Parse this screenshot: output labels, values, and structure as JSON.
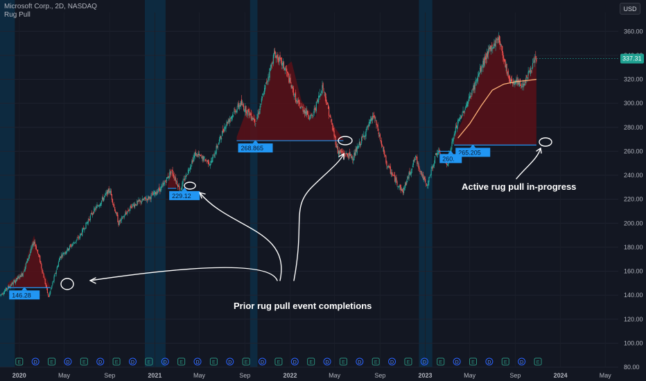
{
  "header": {
    "symbol": "Microsoft Corp., 2D, NASDAQ",
    "indicator": "Rug Pull",
    "currency": "USD"
  },
  "colors": {
    "background": "#131722",
    "up": "#26a69a",
    "down": "#ef5350",
    "fill": "#5a1018",
    "level_line": "#2196f3",
    "label_bg": "#2196f3",
    "session_band": "#0d2a40",
    "ma_line": "#ffb37a",
    "last_price_bg": "#1fa191"
  },
  "chart_data": {
    "type": "candlestick",
    "title": "Microsoft Corp., 2D, NASDAQ",
    "ylim": [
      80,
      370
    ],
    "yticks": [
      80,
      100,
      120,
      140,
      160,
      180,
      200,
      220,
      240,
      260,
      280,
      300,
      320,
      340,
      360
    ],
    "ytick_labels": [
      "80.00",
      "100.00",
      "120.00",
      "140.00",
      "160.00",
      "180.00",
      "200.00",
      "220.00",
      "240.00",
      "260.00",
      "280.00",
      "300.00",
      "320.00",
      "340.00",
      "360.00"
    ],
    "x_range": [
      "2019-11-10",
      "2024-06-05"
    ],
    "x_ticks": [
      {
        "date": "2020-01-01",
        "label": "2020"
      },
      {
        "date": "2020-05-01",
        "label": "May"
      },
      {
        "date": "2020-09-01",
        "label": "Sep"
      },
      {
        "date": "2021-01-01",
        "label": "2021"
      },
      {
        "date": "2021-05-01",
        "label": "May"
      },
      {
        "date": "2021-09-01",
        "label": "Sep"
      },
      {
        "date": "2022-01-01",
        "label": "2022"
      },
      {
        "date": "2022-05-01",
        "label": "May"
      },
      {
        "date": "2022-09-01",
        "label": "Sep"
      },
      {
        "date": "2023-01-01",
        "label": "2023"
      },
      {
        "date": "2023-05-01",
        "label": "May"
      },
      {
        "date": "2023-09-01",
        "label": "Sep"
      },
      {
        "date": "2024-01-01",
        "label": "2024"
      },
      {
        "date": "2024-05-01",
        "label": "May"
      }
    ],
    "price_path": [
      [
        "2019-11-10",
        140
      ],
      [
        "2020-01-10",
        158
      ],
      [
        "2020-02-10",
        185
      ],
      [
        "2020-02-25",
        170
      ],
      [
        "2020-03-20",
        138
      ],
      [
        "2020-04-20",
        172
      ],
      [
        "2020-06-10",
        188
      ],
      [
        "2020-07-15",
        208
      ],
      [
        "2020-09-01",
        228
      ],
      [
        "2020-09-25",
        200
      ],
      [
        "2020-11-01",
        215
      ],
      [
        "2020-12-20",
        222
      ],
      [
        "2021-01-20",
        230
      ],
      [
        "2021-02-15",
        244
      ],
      [
        "2021-03-10",
        228
      ],
      [
        "2021-04-20",
        258
      ],
      [
        "2021-06-01",
        250
      ],
      [
        "2021-07-10",
        282
      ],
      [
        "2021-08-20",
        300
      ],
      [
        "2021-10-01",
        285
      ],
      [
        "2021-11-20",
        342
      ],
      [
        "2021-12-20",
        328
      ],
      [
        "2022-01-20",
        300
      ],
      [
        "2022-03-01",
        288
      ],
      [
        "2022-03-30",
        315
      ],
      [
        "2022-05-10",
        260
      ],
      [
        "2022-06-20",
        255
      ],
      [
        "2022-08-15",
        290
      ],
      [
        "2022-09-20",
        248
      ],
      [
        "2022-11-01",
        226
      ],
      [
        "2022-12-05",
        255
      ],
      [
        "2023-01-05",
        230
      ],
      [
        "2023-02-01",
        260
      ],
      [
        "2023-03-01",
        250
      ],
      [
        "2023-03-25",
        280
      ],
      [
        "2023-05-01",
        305
      ],
      [
        "2023-06-15",
        340
      ],
      [
        "2023-07-18",
        355
      ],
      [
        "2023-08-15",
        320
      ],
      [
        "2023-09-20",
        315
      ],
      [
        "2023-10-15",
        330
      ],
      [
        "2023-10-28",
        337.31
      ]
    ],
    "shaded_sessions": [
      [
        "2019-11-10",
        "2019-12-20"
      ],
      [
        "2020-12-05",
        "2021-01-30"
      ],
      [
        "2021-09-15",
        "2021-10-05"
      ],
      [
        "2022-12-15",
        "2023-01-20"
      ]
    ],
    "moving_average": [
      [
        "2023-03-30",
        271
      ],
      [
        "2023-05-01",
        283
      ],
      [
        "2023-06-01",
        298
      ],
      [
        "2023-07-01",
        311
      ],
      [
        "2023-08-01",
        316
      ],
      [
        "2023-09-01",
        318
      ],
      [
        "2023-10-01",
        319
      ],
      [
        "2023-10-28",
        320
      ]
    ],
    "rug_pull_levels": [
      {
        "start": "2019-12-01",
        "end": "2020-03-25",
        "value": 146.28,
        "label": "146.28",
        "fill_top": [
          [
            "2019-12-01",
            150
          ],
          [
            "2020-01-10",
            160
          ],
          [
            "2020-02-10",
            190
          ],
          [
            "2020-02-20",
            175
          ],
          [
            "2020-03-05",
            160
          ],
          [
            "2020-03-25",
            147
          ]
        ]
      },
      {
        "start": "2021-02-05",
        "end": "2021-02-28",
        "value": 229.12,
        "label": "229.12",
        "fill_top": [
          [
            "2021-02-05",
            232
          ],
          [
            "2021-02-15",
            245
          ],
          [
            "2021-02-28",
            232
          ]
        ]
      },
      {
        "start": "2021-08-10",
        "end": "2022-05-25",
        "value": 268.865,
        "label": "268.865",
        "fill_top": [
          [
            "2021-08-10",
            272
          ],
          [
            "2021-09-10",
            298
          ],
          [
            "2021-10-05",
            287
          ],
          [
            "2021-11-20",
            345
          ],
          [
            "2021-12-10",
            328
          ],
          [
            "2022-01-05",
            335
          ],
          [
            "2022-02-01",
            302
          ],
          [
            "2022-03-10",
            288
          ],
          [
            "2022-03-30",
            315
          ],
          [
            "2022-04-20",
            285
          ],
          [
            "2022-05-25",
            270
          ]
        ]
      },
      {
        "start": "2023-03-20",
        "end": "2023-10-28",
        "value": 265.205,
        "label": "265.205",
        "fill_top": [
          [
            "2023-03-20",
            272
          ],
          [
            "2023-04-10",
            285
          ],
          [
            "2023-05-01",
            305
          ],
          [
            "2023-06-15",
            342
          ],
          [
            "2023-07-18",
            358
          ],
          [
            "2023-08-15",
            322
          ],
          [
            "2023-09-20",
            316
          ],
          [
            "2023-10-15",
            332
          ],
          [
            "2023-10-28",
            337
          ]
        ]
      },
      {
        "start": "2023-02-05",
        "end": "2023-03-10",
        "value": 260,
        "label": "260.",
        "fill_top": []
      }
    ],
    "earnings_markers": [
      "E",
      "D",
      "E",
      "D",
      "E",
      "D",
      "E",
      "D",
      "E",
      "D",
      "E",
      "D",
      "E",
      "D",
      "E",
      "D",
      "E",
      "D",
      "E",
      "D",
      "E",
      "D",
      "E",
      "D",
      "E",
      "D",
      "E",
      "D",
      "E",
      "D",
      "E",
      "D",
      "E"
    ],
    "last_price": 337.31,
    "last_price_label": "337.31",
    "annotations": [
      {
        "text": "Active rug pull in-progress"
      },
      {
        "text": "Prior rug pull event completions"
      }
    ]
  }
}
